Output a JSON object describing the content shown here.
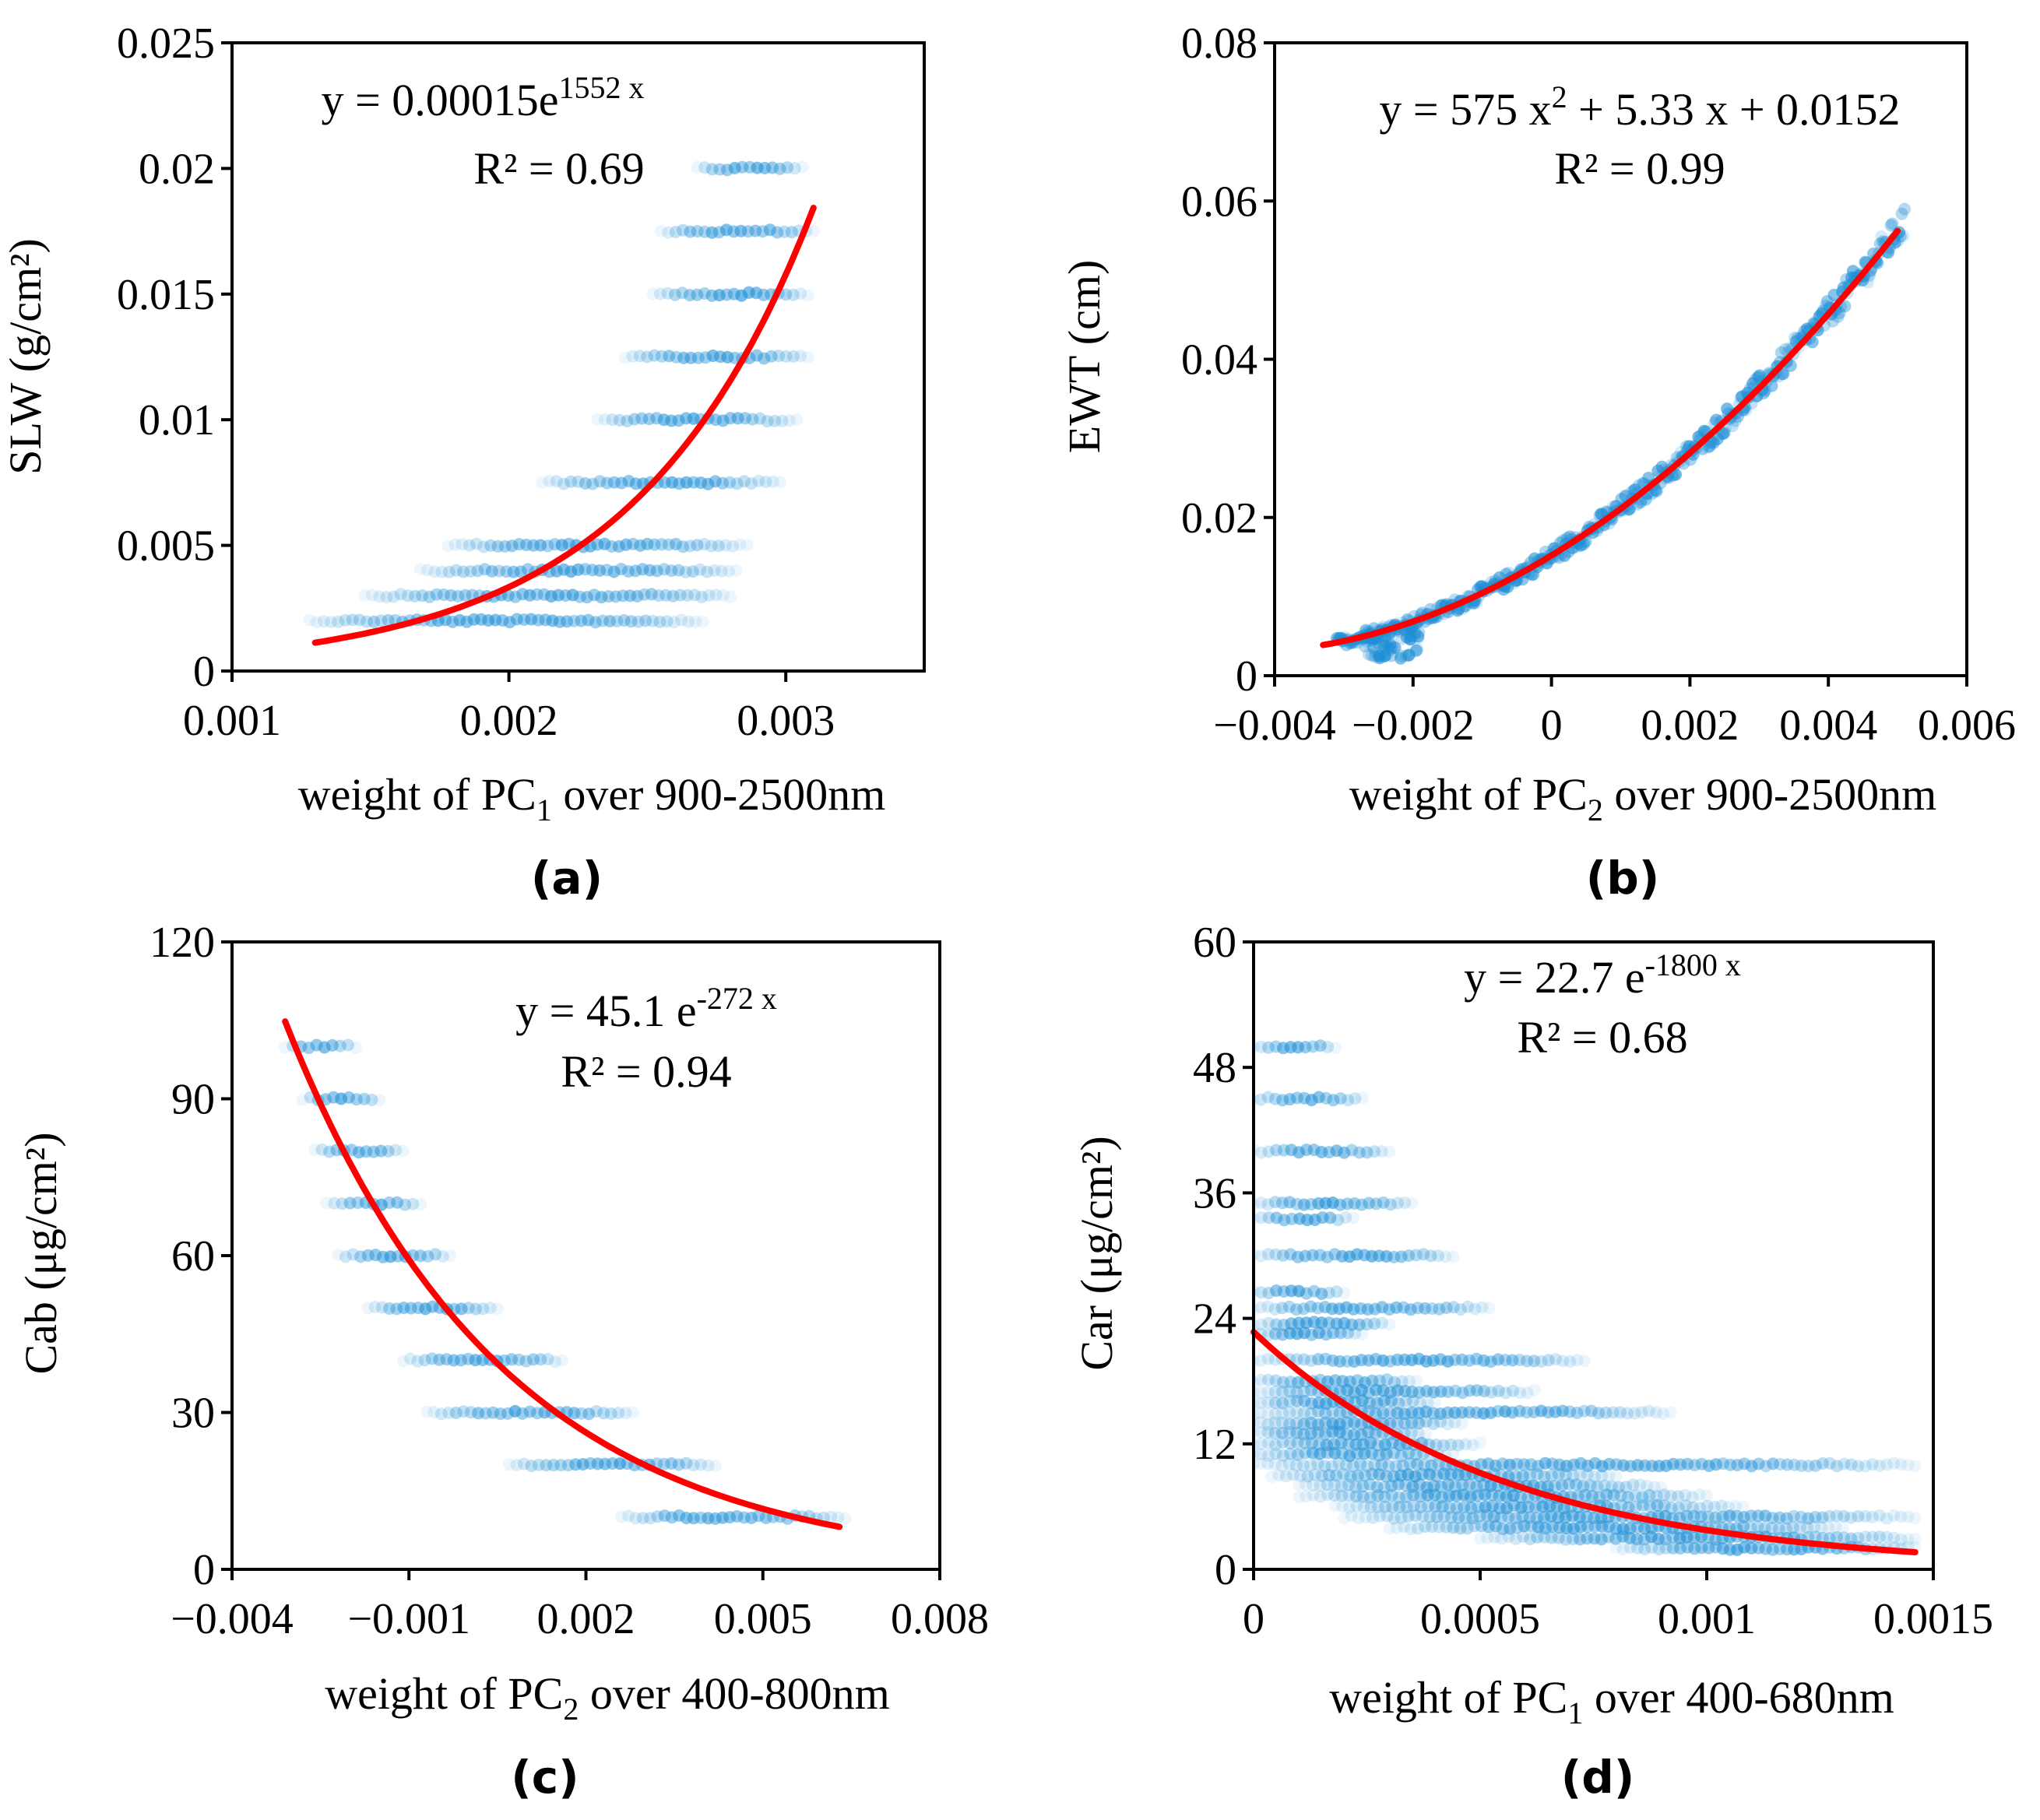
{
  "colors": {
    "points": "#1f8fd6",
    "fit": "#ff0000",
    "axes": "#000000"
  },
  "chart_data": [
    {
      "panel": "(a)",
      "type": "scatter",
      "xlabel": "weight of PC",
      "xlabel_sub": "1",
      "xlabel_rest": " over 900-2500nm",
      "ylabel": "SLW (g/cm²)",
      "xlim": [
        0.001,
        0.0035
      ],
      "ylim": [
        0,
        0.025
      ],
      "xticks": [
        0.001,
        0.002,
        0.003
      ],
      "xtick_labels": [
        "0.001",
        "0.002",
        "0.003"
      ],
      "yticks": [
        0,
        0.005,
        0.01,
        0.015,
        0.02,
        0.025
      ],
      "ytick_labels": [
        "0",
        "0.005",
        "0.01",
        "0.015",
        "0.02",
        "0.025"
      ],
      "equation_base": "y = 0.00015e",
      "equation_sup": "1552 x",
      "equation_rest": "",
      "r2": "R² = 0.69",
      "point_bands": [
        {
          "y": 0.002,
          "x_min": 0.00128,
          "x_max": 0.0027
        },
        {
          "y": 0.003,
          "x_min": 0.00148,
          "x_max": 0.0028
        },
        {
          "y": 0.004,
          "x_min": 0.00168,
          "x_max": 0.00282
        },
        {
          "y": 0.005,
          "x_min": 0.00178,
          "x_max": 0.00286
        },
        {
          "y": 0.0075,
          "x_min": 0.00212,
          "x_max": 0.00298
        },
        {
          "y": 0.01,
          "x_min": 0.00232,
          "x_max": 0.00304
        },
        {
          "y": 0.0125,
          "x_min": 0.00242,
          "x_max": 0.00308
        },
        {
          "y": 0.015,
          "x_min": 0.00252,
          "x_max": 0.00308
        },
        {
          "y": 0.0175,
          "x_min": 0.00255,
          "x_max": 0.0031
        },
        {
          "y": 0.02,
          "x_min": 0.00268,
          "x_max": 0.00306
        }
      ],
      "fit": {
        "kind": "exp",
        "a": 0.00015,
        "b": 1552,
        "x_from": 0.0013,
        "x_to": 0.0031
      }
    },
    {
      "panel": "(b)",
      "type": "scatter",
      "xlabel": "weight of PC",
      "xlabel_sub": "2",
      "xlabel_rest": " over 900-2500nm",
      "ylabel": "EWT (cm)",
      "xlim": [
        -0.004,
        0.006
      ],
      "ylim": [
        0,
        0.08
      ],
      "xticks": [
        -0.004,
        -0.002,
        0,
        0.002,
        0.004,
        0.006
      ],
      "xtick_labels": [
        "-0.004",
        "-0.002",
        "0",
        "0.002",
        "0.004",
        "0.006"
      ],
      "yticks": [
        0,
        0.02,
        0.04,
        0.06,
        0.08
      ],
      "ytick_labels": [
        "0",
        "0.02",
        "0.04",
        "0.06",
        "0.08"
      ],
      "equation_base": "y = 575 x",
      "equation_sup": "2",
      "equation_rest": " + 5.33 x + 0.0152",
      "r2": "R² = 0.99",
      "fit": {
        "kind": "poly",
        "c2": 575,
        "c1": 5.33,
        "c0": 0.0152,
        "x_from": -0.0033,
        "x_to": 0.005
      }
    },
    {
      "panel": "(c)",
      "type": "scatter",
      "xlabel": "weight of PC",
      "xlabel_sub": "2",
      "xlabel_rest": " over 400-800nm",
      "ylabel": "Cab (μg/cm²)",
      "xlim": [
        -0.004,
        0.008
      ],
      "ylim": [
        0,
        120
      ],
      "xticks": [
        -0.004,
        -0.001,
        0.002,
        0.005,
        0.008
      ],
      "xtick_labels": [
        "-0.004",
        "-0.001",
        "0.002",
        "0.005",
        "0.008"
      ],
      "yticks": [
        0,
        30,
        60,
        90,
        120
      ],
      "ytick_labels": [
        "0",
        "30",
        "60",
        "90",
        "120"
      ],
      "equation_base": "y = 45.1 e",
      "equation_sup": "-272 x",
      "equation_rest": "",
      "r2": "R² = 0.94",
      "point_bands": [
        {
          "y": 100,
          "x_min": -0.0031,
          "x_max": -0.0019
        },
        {
          "y": 90,
          "x_min": -0.0028,
          "x_max": -0.0015
        },
        {
          "y": 80,
          "x_min": -0.0026,
          "x_max": -0.0011
        },
        {
          "y": 70,
          "x_min": -0.0024,
          "x_max": -0.0008
        },
        {
          "y": 60,
          "x_min": -0.0022,
          "x_max": -0.0003
        },
        {
          "y": 50,
          "x_min": -0.0017,
          "x_max": 0.0005
        },
        {
          "y": 40,
          "x_min": -0.0011,
          "x_max": 0.0016
        },
        {
          "y": 30,
          "x_min": -0.0007,
          "x_max": 0.0028
        },
        {
          "y": 20,
          "x_min": 0.0007,
          "x_max": 0.0042
        },
        {
          "y": 10,
          "x_min": 0.0026,
          "x_max": 0.0064
        }
      ],
      "fit": {
        "kind": "exp",
        "a": 45.1,
        "b": -272,
        "x_from": -0.0031,
        "x_to": 0.0063
      }
    },
    {
      "panel": "(d)",
      "type": "scatter",
      "xlabel": "weight of PC",
      "xlabel_sub": "1",
      "xlabel_rest": " over 400-680nm",
      "ylabel": "Car (μg/cm²)",
      "xlim": [
        0,
        0.0015
      ],
      "ylim": [
        0,
        60
      ],
      "xticks": [
        0,
        0.0005,
        0.001,
        0.0015
      ],
      "xtick_labels": [
        "0",
        "0.0005",
        "0.001",
        "0.0015"
      ],
      "yticks": [
        0,
        12,
        24,
        36,
        48,
        60
      ],
      "ytick_labels": [
        "0",
        "12",
        "24",
        "36",
        "48",
        "60"
      ],
      "equation_base": "y = 22.7 e",
      "equation_sup": "-1800 x",
      "equation_rest": "",
      "r2": "R² = 0.68",
      "point_bands": [
        {
          "y": 50,
          "x_min": 0.0,
          "x_max": 0.00018
        },
        {
          "y": 45,
          "x_min": 0.0,
          "x_max": 0.00024
        },
        {
          "y": 40,
          "x_min": 0.0,
          "x_max": 0.0003
        },
        {
          "y": 35,
          "x_min": 0.0,
          "x_max": 0.00035
        },
        {
          "y": 33.5,
          "x_min": 0.0,
          "x_max": 0.00022
        },
        {
          "y": 30,
          "x_min": 0.0,
          "x_max": 0.00044
        },
        {
          "y": 26.5,
          "x_min": 0.0,
          "x_max": 0.0002
        },
        {
          "y": 25,
          "x_min": 0.0,
          "x_max": 0.00052
        },
        {
          "y": 23.5,
          "x_min": 0.0,
          "x_max": 0.0003
        },
        {
          "y": 22.5,
          "x_min": 0.0,
          "x_max": 0.00024
        },
        {
          "y": 20,
          "x_min": 0.0,
          "x_max": 0.00073
        },
        {
          "y": 18,
          "x_min": 0.0,
          "x_max": 0.00036
        },
        {
          "y": 17,
          "x_min": 0.0,
          "x_max": 0.00062
        },
        {
          "y": 16,
          "x_min": 0.0,
          "x_max": 0.0004
        },
        {
          "y": 15,
          "x_min": 0.0,
          "x_max": 0.00092
        },
        {
          "y": 14,
          "x_min": 0.0,
          "x_max": 0.00046
        },
        {
          "y": 13,
          "x_min": 0.0,
          "x_max": 0.00038
        },
        {
          "y": 12,
          "x_min": 0.0,
          "x_max": 0.0005
        },
        {
          "y": 11,
          "x_min": 0.0,
          "x_max": 0.00044
        },
        {
          "y": 10,
          "x_min": 0.0,
          "x_max": 0.00146
        },
        {
          "y": 9,
          "x_min": 4e-05,
          "x_max": 0.0008
        },
        {
          "y": 8,
          "x_min": 0.0001,
          "x_max": 0.0009
        },
        {
          "y": 7,
          "x_min": 0.0001,
          "x_max": 0.001
        },
        {
          "y": 6,
          "x_min": 0.00018,
          "x_max": 0.00108
        },
        {
          "y": 5,
          "x_min": 0.0002,
          "x_max": 0.00146
        },
        {
          "y": 4,
          "x_min": 0.0003,
          "x_max": 0.0013
        },
        {
          "y": 3,
          "x_min": 0.0005,
          "x_max": 0.00146
        },
        {
          "y": 2,
          "x_min": 0.0008,
          "x_max": 0.00146
        }
      ],
      "fit": {
        "kind": "exp",
        "a": 22.7,
        "b": -1800,
        "x_from": 0.0,
        "x_to": 0.00146
      }
    }
  ]
}
